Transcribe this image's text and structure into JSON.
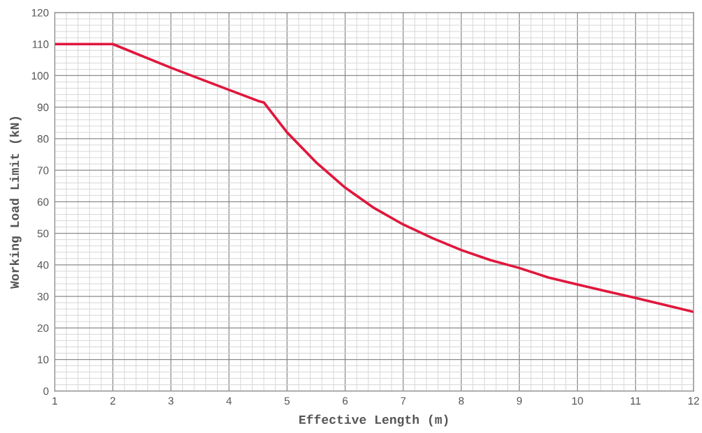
{
  "chart_data": {
    "type": "line",
    "xlabel": "Effective Length (m)",
    "ylabel": "Working Load Limit (kN)",
    "x": [
      1,
      2,
      3,
      4,
      4.5,
      4.6,
      5,
      5.5,
      6,
      6.5,
      7,
      7.5,
      8,
      8.5,
      9,
      9.25,
      9.5,
      10,
      10.5,
      11,
      11.5,
      12
    ],
    "series": [
      {
        "color": "#e0173c",
        "values": [
          110,
          110,
          102.5,
          95.5,
          92,
          91.5,
          82,
          72.5,
          64.5,
          58,
          52.8,
          48.5,
          44.7,
          41.5,
          39,
          37.5,
          36,
          33.8,
          31.6,
          29.5,
          27.3,
          25.1
        ]
      }
    ],
    "xlim": [
      1,
      12
    ],
    "ylim": [
      0,
      120
    ],
    "xticks": [
      1,
      2,
      3,
      4,
      5,
      6,
      7,
      8,
      9,
      10,
      11,
      12
    ],
    "yticks": [
      0,
      10,
      20,
      30,
      40,
      50,
      60,
      70,
      80,
      90,
      100,
      110,
      120
    ],
    "grid": true,
    "marker": "none",
    "line_style": "solid"
  }
}
